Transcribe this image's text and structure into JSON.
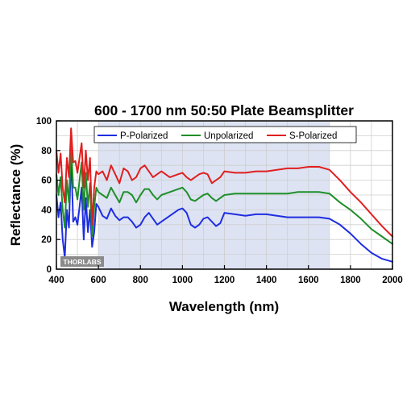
{
  "chart_data": {
    "type": "line",
    "title": "600 - 1700 nm 50:50 Plate Beamsplitter",
    "xlabel": "Wavelength (nm)",
    "ylabel": "Reflectance (%)",
    "xlim": [
      400,
      2000
    ],
    "ylim": [
      0,
      100
    ],
    "xticks": [
      400,
      600,
      800,
      1000,
      1200,
      1400,
      1600,
      1800,
      2000
    ],
    "yticks": [
      0,
      20,
      40,
      60,
      80,
      100
    ],
    "grid": true,
    "legend_position": "top",
    "shaded_region": {
      "x": [
        600,
        1700
      ],
      "color": "#dde3f3"
    },
    "watermark": "THORLABS",
    "series": [
      {
        "name": "P-Polarized",
        "color": "#1f2ee0",
        "x": [
          400,
          410,
          420,
          430,
          440,
          450,
          460,
          470,
          480,
          490,
          500,
          510,
          520,
          530,
          540,
          550,
          560,
          570,
          580,
          590,
          600,
          620,
          640,
          660,
          680,
          700,
          720,
          740,
          760,
          780,
          800,
          820,
          840,
          860,
          880,
          900,
          940,
          980,
          1000,
          1020,
          1040,
          1060,
          1080,
          1100,
          1120,
          1140,
          1160,
          1180,
          1200,
          1250,
          1300,
          1350,
          1400,
          1450,
          1500,
          1550,
          1600,
          1650,
          1700,
          1750,
          1800,
          1850,
          1900,
          1950,
          2000
        ],
        "y": [
          50,
          35,
          45,
          20,
          8,
          40,
          28,
          78,
          32,
          35,
          30,
          42,
          55,
          20,
          48,
          25,
          40,
          15,
          25,
          44,
          42,
          36,
          34,
          41,
          36,
          33,
          35,
          35,
          32,
          28,
          30,
          35,
          38,
          34,
          30,
          32,
          36,
          40,
          41,
          38,
          30,
          28,
          30,
          34,
          35,
          32,
          29,
          31,
          38,
          37,
          36,
          37,
          37,
          36,
          35,
          35,
          35,
          35,
          34,
          30,
          24,
          17,
          11,
          7,
          5
        ]
      },
      {
        "name": "Unpolarized",
        "color": "#1f8f2a",
        "x": [
          400,
          410,
          420,
          430,
          440,
          450,
          460,
          470,
          480,
          490,
          500,
          510,
          520,
          530,
          540,
          550,
          560,
          570,
          580,
          590,
          600,
          620,
          640,
          660,
          680,
          700,
          720,
          740,
          760,
          780,
          800,
          820,
          840,
          860,
          880,
          900,
          940,
          980,
          1000,
          1020,
          1040,
          1060,
          1080,
          1100,
          1120,
          1140,
          1160,
          1180,
          1200,
          1250,
          1300,
          1350,
          1400,
          1450,
          1500,
          1550,
          1600,
          1650,
          1700,
          1750,
          1800,
          1850,
          1900,
          1950,
          2000
        ],
        "y": [
          64,
          50,
          62,
          40,
          28,
          60,
          45,
          85,
          55,
          55,
          47,
          60,
          72,
          40,
          65,
          42,
          58,
          22,
          42,
          55,
          52,
          50,
          48,
          55,
          50,
          45,
          52,
          52,
          50,
          45,
          50,
          54,
          54,
          50,
          47,
          50,
          52,
          54,
          55,
          52,
          47,
          46,
          48,
          50,
          51,
          48,
          46,
          48,
          50,
          51,
          51,
          51,
          51,
          51,
          51,
          52,
          52,
          52,
          51,
          45,
          40,
          34,
          27,
          22,
          17
        ]
      },
      {
        "name": "S-Polarized",
        "color": "#e01f1f",
        "x": [
          400,
          410,
          420,
          430,
          440,
          450,
          460,
          470,
          480,
          490,
          500,
          510,
          520,
          530,
          540,
          550,
          560,
          570,
          580,
          590,
          600,
          620,
          640,
          660,
          680,
          700,
          720,
          740,
          760,
          780,
          800,
          820,
          840,
          860,
          880,
          900,
          940,
          980,
          1000,
          1020,
          1040,
          1060,
          1080,
          1100,
          1120,
          1140,
          1160,
          1180,
          1200,
          1250,
          1300,
          1350,
          1400,
          1450,
          1500,
          1550,
          1600,
          1650,
          1700,
          1750,
          1800,
          1850,
          1900,
          1950,
          2000
        ],
        "y": [
          80,
          65,
          78,
          55,
          45,
          75,
          62,
          95,
          72,
          73,
          65,
          75,
          85,
          55,
          80,
          60,
          75,
          30,
          55,
          66,
          64,
          66,
          60,
          70,
          64,
          58,
          68,
          66,
          60,
          62,
          68,
          70,
          66,
          62,
          64,
          66,
          62,
          64,
          65,
          62,
          60,
          62,
          64,
          65,
          64,
          58,
          60,
          62,
          66,
          65,
          65,
          66,
          66,
          67,
          68,
          68,
          69,
          69,
          67,
          60,
          52,
          45,
          37,
          29,
          22
        ]
      }
    ]
  }
}
